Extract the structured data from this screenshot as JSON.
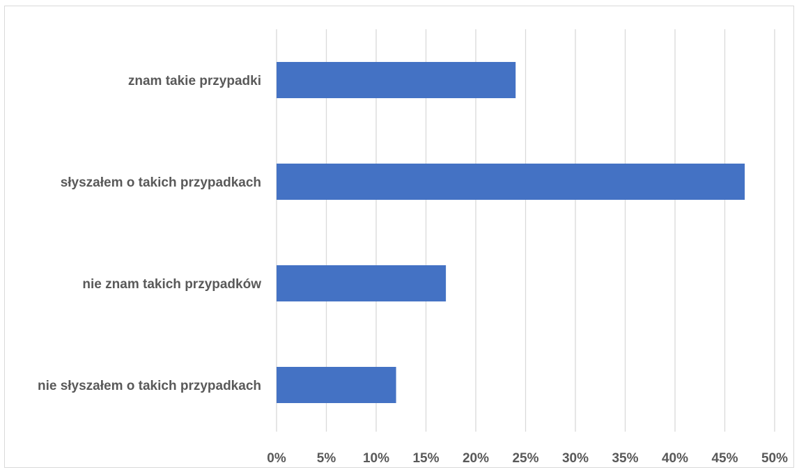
{
  "chart_data": {
    "type": "bar",
    "orientation": "horizontal",
    "categories": [
      "znam takie przypadki",
      "słyszałem o takich przypadkach",
      "nie znam takich przypadków",
      "nie słyszałem o takich przypadkach"
    ],
    "values": [
      24,
      47,
      17,
      12
    ],
    "value_unit": "%",
    "xlim": [
      0,
      50
    ],
    "x_ticks": [
      "0%",
      "5%",
      "10%",
      "15%",
      "20%",
      "25%",
      "30%",
      "35%",
      "40%",
      "45%",
      "50%"
    ],
    "x_tick_values": [
      0,
      5,
      10,
      15,
      20,
      25,
      30,
      35,
      40,
      45,
      50
    ],
    "grid": "vertical",
    "legend": "none",
    "bar_color": "#4472c4",
    "grid_color": "#d9d9d9",
    "label_color": "#595959"
  }
}
